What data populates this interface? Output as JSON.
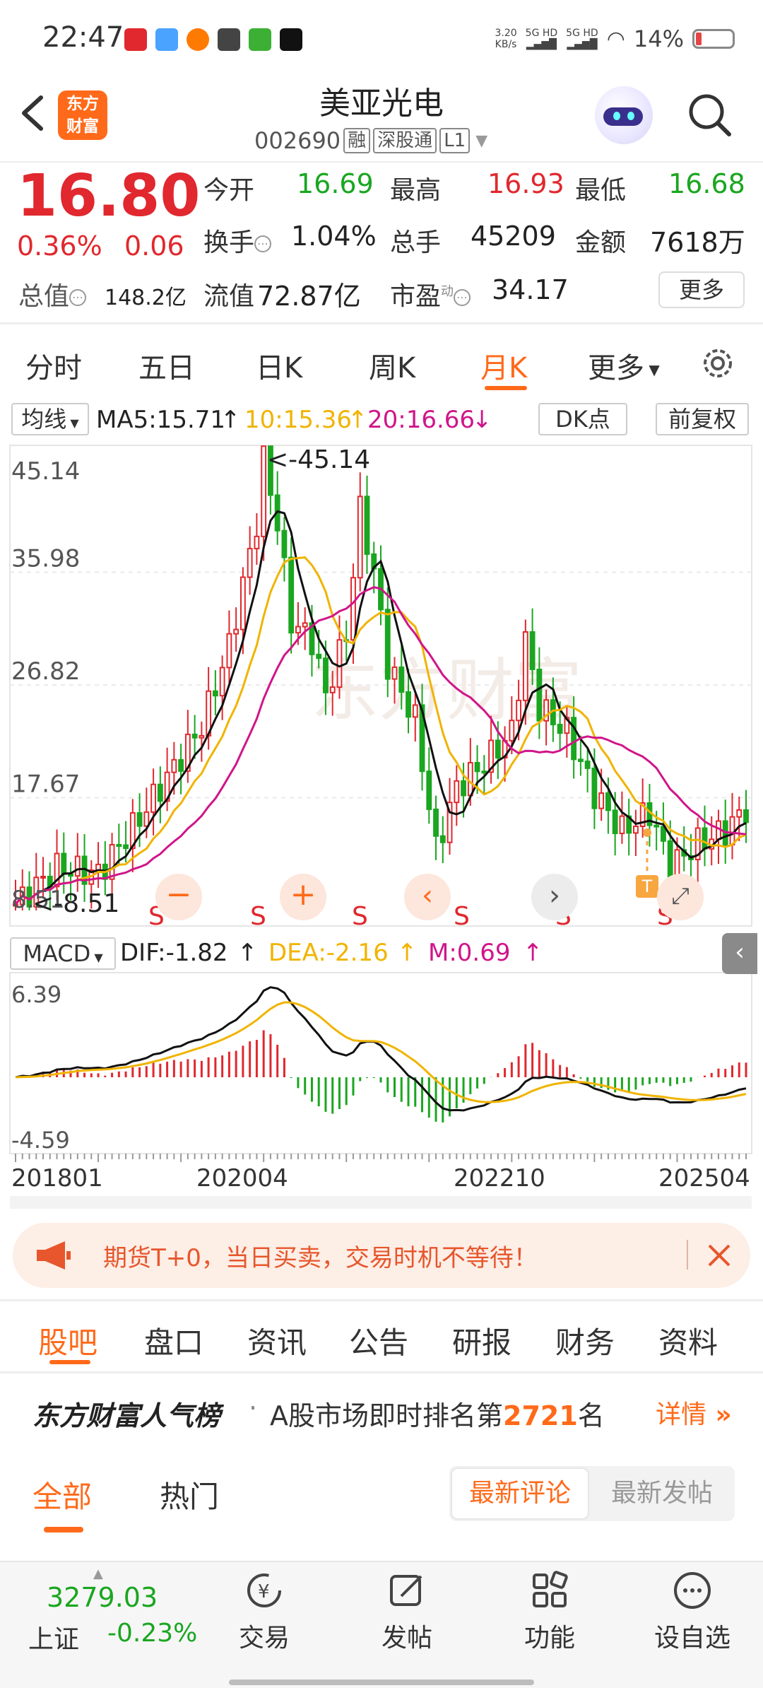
{
  "status_bar": {
    "time": "22:47",
    "net_speed": "3.20",
    "net_unit": "KB/s",
    "sig1": "5G HD",
    "sig2": "5G HD",
    "battery": "14%"
  },
  "header": {
    "logo_line1": "东方",
    "logo_line2": "财富",
    "stock_name": "美亚光电",
    "stock_code": "002690",
    "tags": [
      "融",
      "深股通",
      "L1"
    ]
  },
  "quote": {
    "price": "16.80",
    "pct": "0.36%",
    "change": "0.06",
    "open_label": "今开",
    "open": "16.69",
    "high_label": "最高",
    "high": "16.93",
    "low_label": "最低",
    "low": "16.68",
    "turnover_label": "换手",
    "turnover": "1.04%",
    "volume_label": "总手",
    "volume": "45209",
    "amount_label": "金额",
    "amount": "7618万",
    "mcap_label": "总值",
    "mcap": "148.2亿",
    "float_label": "流值",
    "float": "72.87亿",
    "pe_label": "市盈",
    "pe_sup": "动",
    "pe": "34.17",
    "more": "更多"
  },
  "chart_tabs": [
    "分时",
    "五日",
    "日K",
    "周K",
    "月K",
    "更多"
  ],
  "indicator_row": {
    "ma_btn": "均线",
    "ma5": "MA5:15.71",
    "ma10": "10:15.36",
    "ma20": "20:16.66",
    "dk": "DK点",
    "fq": "前复权"
  },
  "kline": {
    "y_ticks": [
      "45.14",
      "35.98",
      "26.82",
      "17.67",
      "8.51"
    ],
    "max_label": "<-45.14",
    "min_label": "<-8.51",
    "watermark": "东方财富"
  },
  "macd": {
    "btn": "MACD",
    "dif": "DIF:-1.82",
    "dea": "DEA:-2.16",
    "m": "M:0.69",
    "y_top": "6.39",
    "y_bot": "-4.59",
    "x_labels": [
      "201801",
      "202004",
      "202210",
      "202504"
    ]
  },
  "chart_data": {
    "type": "candlestick",
    "y_range": [
      8.51,
      45.14
    ],
    "x_range": [
      "201801",
      "202504"
    ],
    "max": 45.14,
    "min": 8.51,
    "ma": {
      "MA5": 15.71,
      "MA10": 15.36,
      "MA20": 16.66
    },
    "colors": {
      "up": "#e0282e",
      "down": "#1aa620",
      "ma5": "#111111",
      "ma10": "#f0b400",
      "ma20": "#d0158a"
    }
  },
  "banner": {
    "text": "期货T+0，当日买卖，交易时机不等待！"
  },
  "bottom_tabs": [
    "股吧",
    "盘口",
    "资讯",
    "公告",
    "研报",
    "财务",
    "资料"
  ],
  "rank": {
    "title": "东方财富人气榜",
    "dot": "·",
    "prefix": "A股市场即时排名第",
    "num": "2721",
    "suffix": "名",
    "detail": "详情"
  },
  "feed_tabs": [
    "全部",
    "热门"
  ],
  "sort": [
    "最新评论",
    "最新发帖"
  ],
  "nav": {
    "index_value": "3279.03",
    "index_name": "上证",
    "index_pct": "-0.23%",
    "items": [
      "交易",
      "发帖",
      "功能",
      "设自选"
    ]
  }
}
